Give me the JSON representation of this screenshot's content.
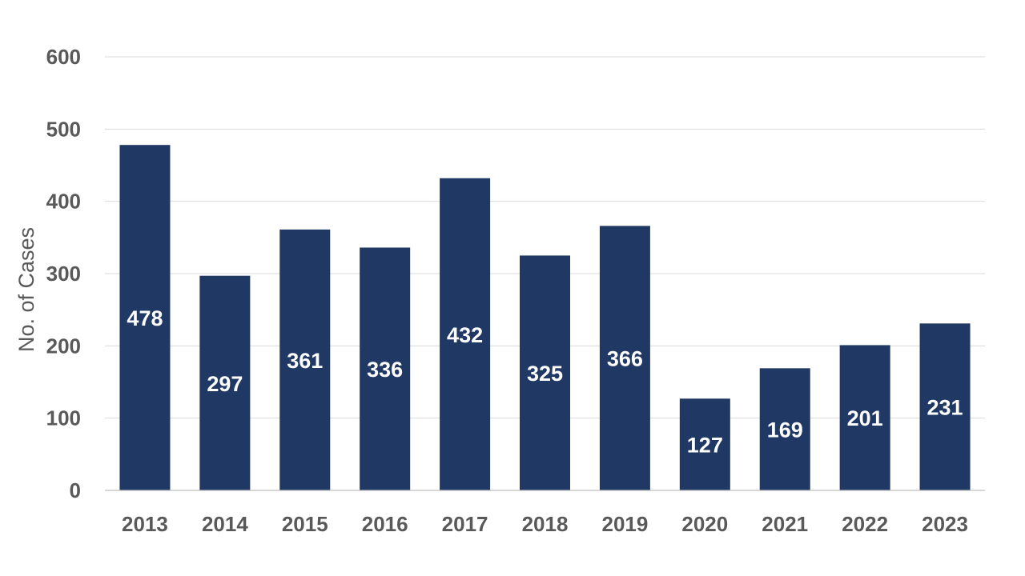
{
  "chart_data": {
    "type": "bar",
    "categories": [
      "2013",
      "2014",
      "2015",
      "2016",
      "2017",
      "2018",
      "2019",
      "2020",
      "2021",
      "2022",
      "2023"
    ],
    "series": [
      {
        "values": [
          478,
          297,
          361,
          336,
          432,
          325,
          366,
          127,
          169,
          201,
          231
        ],
        "color": "#203864"
      }
    ],
    "title": "",
    "xlabel": "",
    "ylabel": "No. of Cases",
    "ylim": [
      0,
      600
    ],
    "yticks": [
      0,
      100,
      200,
      300,
      400,
      500,
      600
    ],
    "grid": true,
    "legend": "none",
    "data_labels": "inside-middle, white bold"
  }
}
